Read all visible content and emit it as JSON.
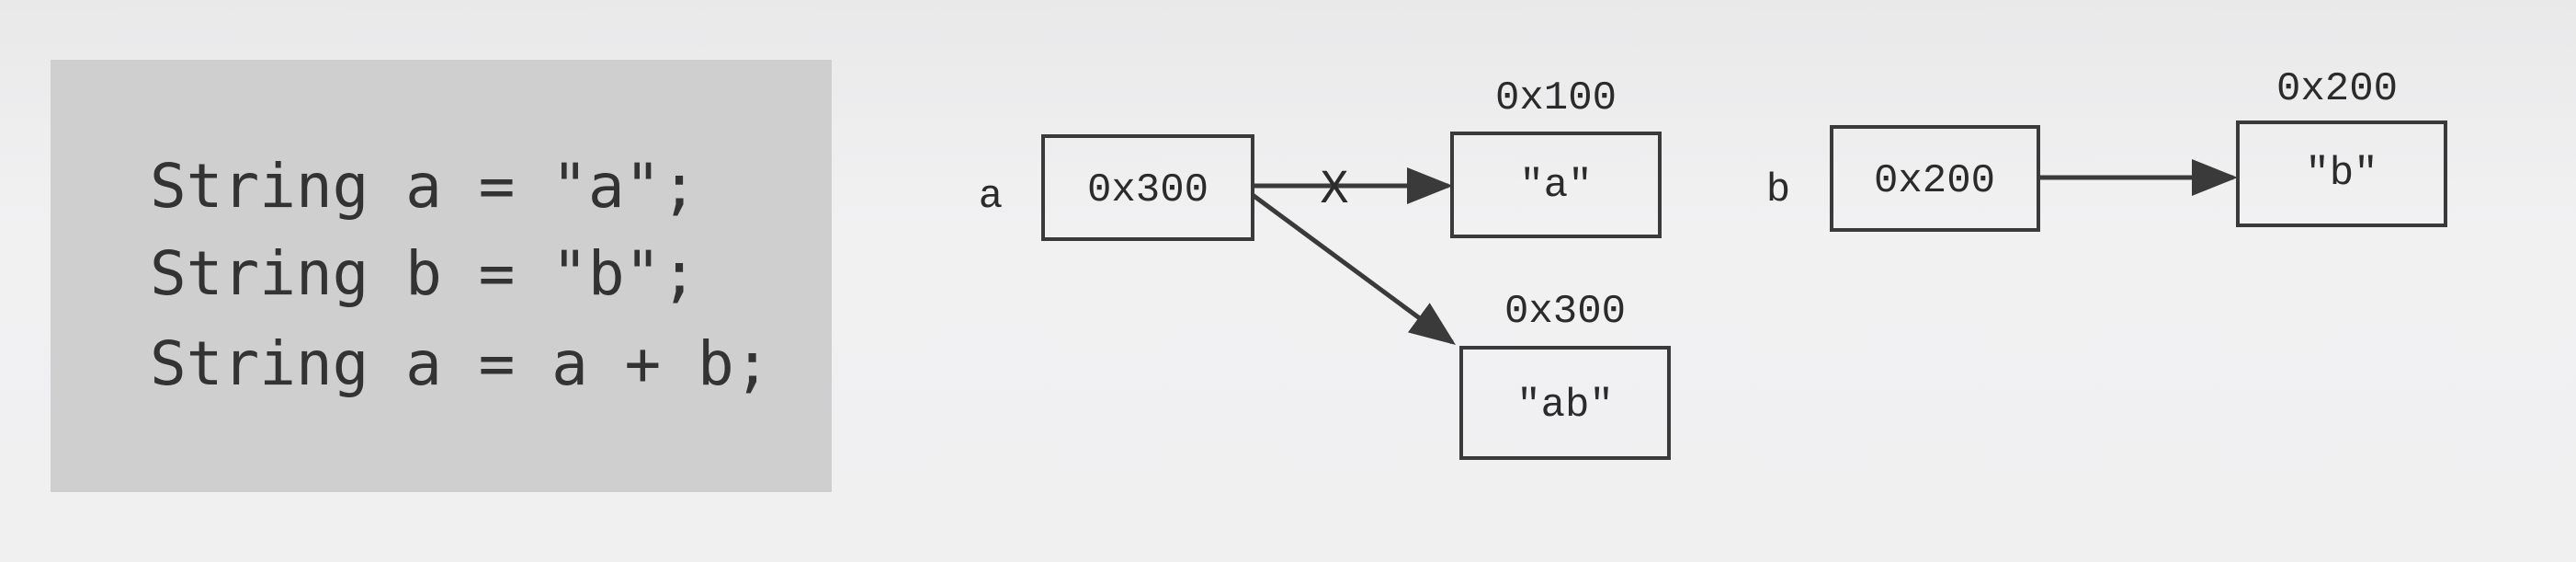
{
  "code": {
    "lines": [
      "String a = \"a\";",
      "String b = \"b\";",
      "String a = a + b;"
    ]
  },
  "diagram": {
    "var_a": {
      "name": "a",
      "ref": "0x300"
    },
    "var_b": {
      "name": "b",
      "ref": "0x200"
    },
    "obj_a": {
      "address": "0x100",
      "value": "\"a\""
    },
    "obj_ab": {
      "address": "0x300",
      "value": "\"ab\""
    },
    "obj_b": {
      "address": "0x200",
      "value": "\"b\""
    },
    "broken_marker": "X"
  },
  "colors": {
    "stroke": "#3a3a3a",
    "panel": "#cfcfd0",
    "text": "#2b2b2b"
  }
}
